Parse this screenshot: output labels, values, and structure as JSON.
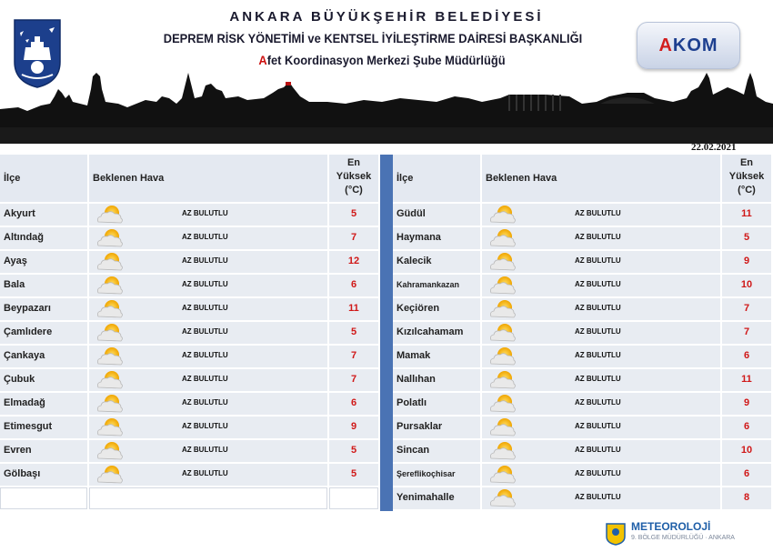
{
  "header": {
    "logo_text": "ANKARA",
    "title_line1": "ANKARA BÜYÜKŞEHİR BELEDİYESİ",
    "title_line2": "DEPREM RİSK YÖNETİMİ ve KENTSEL İYİLEŞTİRME DAİRESİ BAŞKANLIĞI",
    "title_line3_first": "A",
    "title_line3_rest": "fet Koordinasyon Merkezi Şube Müdürlüğü",
    "akom_first": "A",
    "akom_rest": "KOM"
  },
  "date": "22.02.2021",
  "columns": {
    "district": "İlçe",
    "weather": "Beklenen Hava",
    "max_temp": "En Yüksek (°C)"
  },
  "weather_icon": "sun-behind-cloud-icon",
  "left_rows": [
    {
      "district": "Akyurt",
      "weather": "AZ BULUTLU",
      "temp": "5"
    },
    {
      "district": "Altındağ",
      "weather": "AZ BULUTLU",
      "temp": "7"
    },
    {
      "district": "Ayaş",
      "weather": "AZ BULUTLU",
      "temp": "12"
    },
    {
      "district": "Bala",
      "weather": "AZ BULUTLU",
      "temp": "6"
    },
    {
      "district": "Beypazarı",
      "weather": "AZ BULUTLU",
      "temp": "11"
    },
    {
      "district": "Çamlıdere",
      "weather": "AZ BULUTLU",
      "temp": "5"
    },
    {
      "district": "Çankaya",
      "weather": "AZ BULUTLU",
      "temp": "7"
    },
    {
      "district": "Çubuk",
      "weather": "AZ BULUTLU",
      "temp": "7"
    },
    {
      "district": "Elmadağ",
      "weather": "AZ BULUTLU",
      "temp": "6"
    },
    {
      "district": "Etimesgut",
      "weather": "AZ BULUTLU",
      "temp": "9"
    },
    {
      "district": "Evren",
      "weather": "AZ BULUTLU",
      "temp": "5"
    },
    {
      "district": "Gölbaşı",
      "weather": "AZ BULUTLU",
      "temp": "5"
    }
  ],
  "right_rows": [
    {
      "district": "Güdül",
      "weather": "AZ BULUTLU",
      "temp": "11"
    },
    {
      "district": "Haymana",
      "weather": "AZ BULUTLU",
      "temp": "5"
    },
    {
      "district": "Kalecik",
      "weather": "AZ BULUTLU",
      "temp": "9"
    },
    {
      "district": "Kahramankazan",
      "weather": "AZ BULUTLU",
      "temp": "10"
    },
    {
      "district": "Keçiören",
      "weather": "AZ BULUTLU",
      "temp": "7"
    },
    {
      "district": "Kızılcahamam",
      "weather": "AZ BULUTLU",
      "temp": "7"
    },
    {
      "district": "Mamak",
      "weather": "AZ BULUTLU",
      "temp": "6"
    },
    {
      "district": "Nallıhan",
      "weather": "AZ BULUTLU",
      "temp": "11"
    },
    {
      "district": "Polatlı",
      "weather": "AZ BULUTLU",
      "temp": "9"
    },
    {
      "district": "Pursaklar",
      "weather": "AZ BULUTLU",
      "temp": "6"
    },
    {
      "district": "Sincan",
      "weather": "AZ BULUTLU",
      "temp": "10"
    },
    {
      "district": "Şereflikoçhisar",
      "weather": "AZ BULUTLU",
      "temp": "6"
    },
    {
      "district": "Yenimahalle",
      "weather": "AZ BULUTLU",
      "temp": "8"
    }
  ],
  "footer": {
    "meteo_title": "METEOROLOJİ",
    "meteo_sub": "9. BÖLGE MÜDÜRLÜĞÜ · ANKARA"
  },
  "colors": {
    "temp": "#d01818",
    "divider": "#4a73b4",
    "cell_bg": "#e8ecf2",
    "accent_red": "#cc1111",
    "meteo_blue": "#1f5fa8"
  }
}
